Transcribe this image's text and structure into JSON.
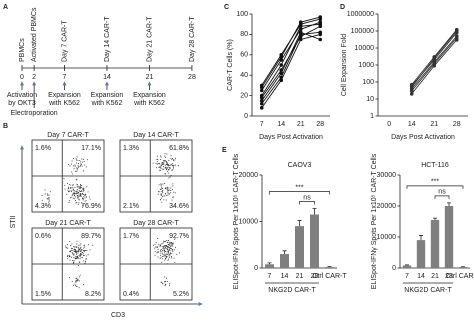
{
  "timeline": {
    "panel": "A",
    "days": [
      0,
      2,
      7,
      14,
      21,
      28
    ],
    "stages": [
      "PBMCs",
      "Activated PBMCs",
      "Day 7 CAR-T",
      "Day 14 CAR-T",
      "Day 21 CAR-T",
      "Day 28 CAR-T"
    ],
    "events": [
      {
        "day": 0,
        "lines": [
          "Activation",
          "by OKT3"
        ]
      },
      {
        "day": 2,
        "lines": [
          "Electroporation"
        ]
      },
      {
        "day": 7,
        "lines": [
          "Expansion",
          "with K562"
        ]
      },
      {
        "day": 14,
        "lines": [
          "Expansion",
          "with K562"
        ]
      },
      {
        "day": 21,
        "lines": [
          "Expansion",
          "with K562"
        ]
      }
    ]
  },
  "flow": {
    "panel": "B",
    "x_label": "CD3",
    "y_label": "STII",
    "plots": [
      {
        "title": "Day 7 CAR-T",
        "ul": "1.6%",
        "ur": "17.1%",
        "ll": "4.3%",
        "lr": "76.9%"
      },
      {
        "title": "Day 14 CAR-T",
        "ul": "1.3%",
        "ur": "61.8%",
        "ll": "2.1%",
        "lr": "34.6%"
      },
      {
        "title": "Day 21 CAR-T",
        "ul": "0.6%",
        "ur": "89.7%",
        "ll": "1.5%",
        "lr": "8.2%"
      },
      {
        "title": "Day 28 CAR-T",
        "ul": "1.7%",
        "ur": "92.7%",
        "ll": "0.4%",
        "lr": "5.2%"
      }
    ]
  },
  "chart_data": [
    {
      "type": "line",
      "panel": "C",
      "y_label": "CAR-T Cells (%)",
      "x_label": "Days Post Activation",
      "categories": [
        7,
        14,
        21,
        28
      ],
      "ylim": [
        0,
        100
      ],
      "yticks": [
        0,
        20,
        40,
        60,
        80,
        100
      ],
      "color": "#111111",
      "series": [
        {
          "values": [
            12,
            38,
            80,
            82
          ]
        },
        {
          "values": [
            18,
            45,
            78,
            88
          ]
        },
        {
          "values": [
            25,
            55,
            85,
            92
          ]
        },
        {
          "values": [
            30,
            60,
            90,
            95
          ]
        },
        {
          "values": [
            8,
            35,
            75,
            80
          ]
        },
        {
          "values": [
            20,
            50,
            88,
            90
          ]
        },
        {
          "values": [
            15,
            42,
            82,
            75
          ]
        },
        {
          "values": [
            28,
            58,
            92,
            97
          ]
        }
      ]
    },
    {
      "type": "line",
      "panel": "D",
      "y_label": "Cell Expansion Fold",
      "x_label": "Days Post Activation",
      "categories": [
        0,
        14,
        21,
        28
      ],
      "log": true,
      "ylim": [
        1,
        1000000
      ],
      "yticks": [
        1,
        10,
        100,
        1000,
        10000,
        100000,
        1000000
      ],
      "color": "#333333",
      "series": [
        {
          "values": [
            null,
            40,
            1500,
            50000
          ]
        },
        {
          "values": [
            null,
            60,
            2000,
            80000
          ]
        },
        {
          "values": [
            null,
            30,
            1200,
            40000
          ]
        },
        {
          "values": [
            null,
            50,
            2500,
            100000
          ]
        },
        {
          "values": [
            null,
            20,
            900,
            30000
          ]
        },
        {
          "values": [
            null,
            70,
            3000,
            120000
          ]
        }
      ]
    },
    {
      "type": "bar",
      "panel": "E",
      "title": "CAOV3",
      "y_label": "ELISpot-IFNγ Spots Per 1x10⁵ CAR-T Cells",
      "group_label": "NKG2D CAR-T",
      "categories": [
        "7",
        "14",
        "21",
        "28",
        "Ctrl CAR-T"
      ],
      "values": [
        800,
        3000,
        9000,
        11500,
        200
      ],
      "errors": [
        300,
        700,
        1200,
        1300,
        100
      ],
      "ylim": [
        0,
        20000
      ],
      "yticks": [
        0,
        10000,
        20000
      ],
      "color": "#7f7f7f",
      "annotations": [
        {
          "text": "ns",
          "between": [
            "21",
            "28"
          ]
        },
        {
          "text": "***",
          "between": [
            "7",
            "Ctrl CAR-T"
          ]
        }
      ]
    },
    {
      "type": "bar",
      "title": "HCT-116",
      "y_label": "ELISpot-IFNγ Spots Per 1x10⁵ CAR-T Cells",
      "group_label": "NKG2D CAR-T",
      "categories": [
        "7",
        "14",
        "21",
        "28",
        "Ctrl CAR-T"
      ],
      "values": [
        800,
        9000,
        15500,
        20000,
        300
      ],
      "errors": [
        200,
        1500,
        600,
        1000,
        100
      ],
      "ylim": [
        0,
        30000
      ],
      "yticks": [
        0,
        10000,
        20000,
        30000
      ],
      "color": "#7f7f7f",
      "annotations": [
        {
          "text": "ns",
          "between": [
            "21",
            "28"
          ]
        },
        {
          "text": "***",
          "between": [
            "7",
            "Ctrl CAR-T"
          ]
        }
      ]
    }
  ]
}
